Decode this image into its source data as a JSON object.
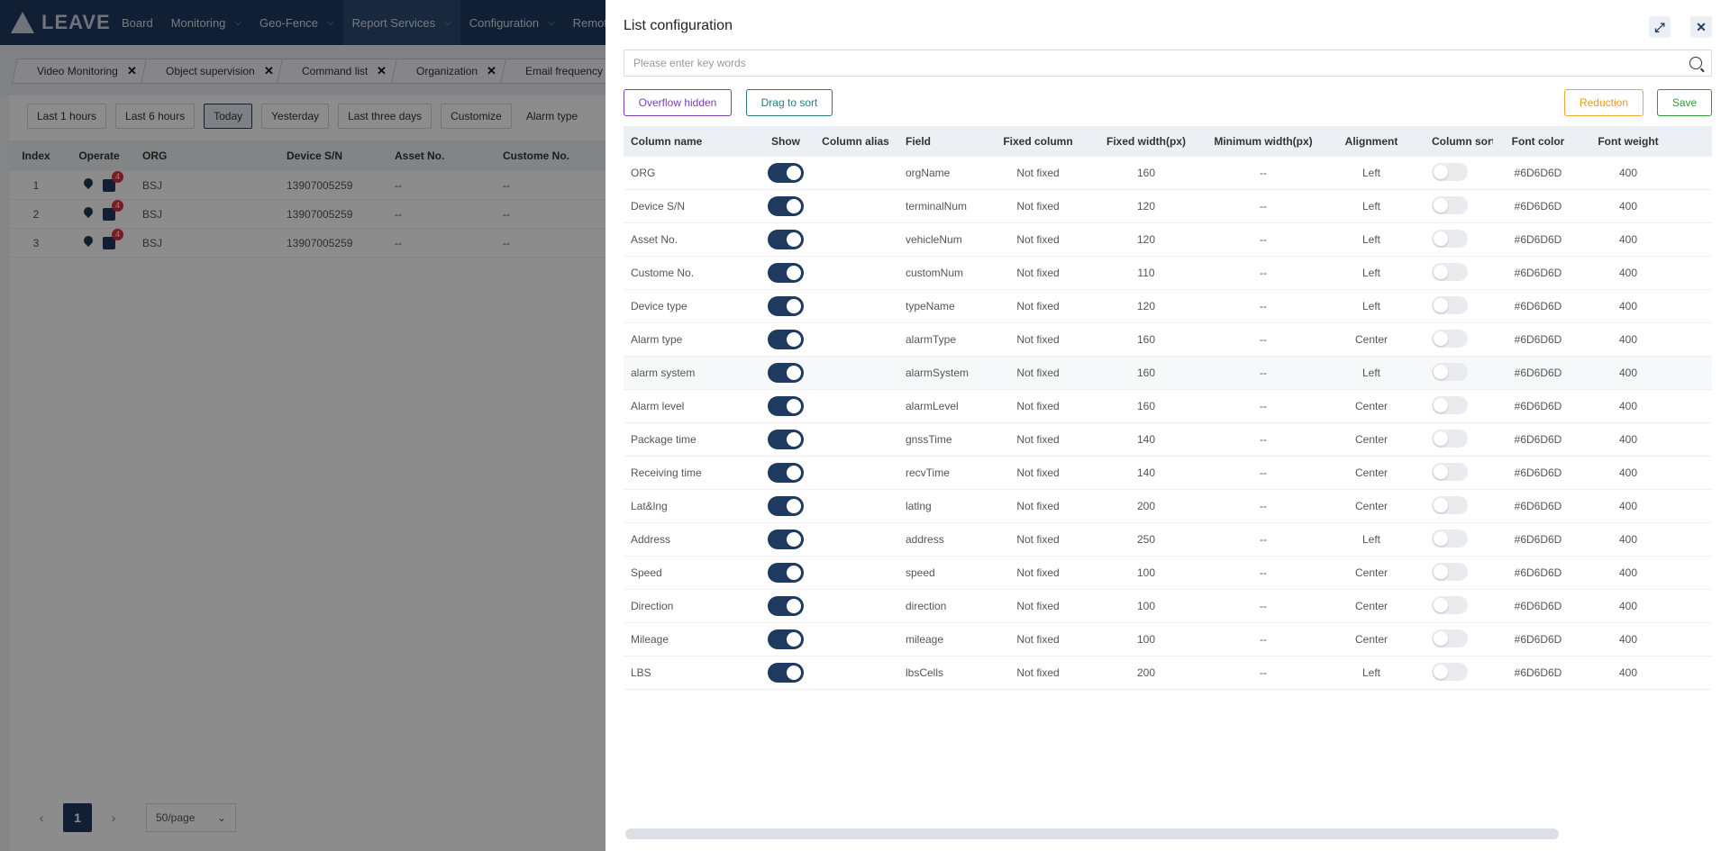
{
  "nav": {
    "logo": "LEAVE",
    "items": [
      {
        "label": "Board",
        "chevron": false
      },
      {
        "label": "Monitoring",
        "chevron": true
      },
      {
        "label": "Geo-Fence",
        "chevron": true
      },
      {
        "label": "Report Services",
        "chevron": true,
        "active": true
      },
      {
        "label": "Configuration",
        "chevron": true
      },
      {
        "label": "Remot",
        "chevron": false
      }
    ]
  },
  "tabs": [
    "Video Monitoring",
    "Object supervision",
    "Command list",
    "Organization",
    "Email frequency co"
  ],
  "filters": {
    "buttons": [
      "Last 1 hours",
      "Last 6 hours",
      "Today",
      "Yesterday",
      "Last three days",
      "Customize"
    ],
    "active": "Today",
    "alarm_type_label": "Alarm type"
  },
  "bg_table": {
    "headers": [
      "Index",
      "Operate",
      "ORG",
      "Device S/N",
      "Asset No.",
      "Custome No."
    ],
    "rows": [
      {
        "index": "1",
        "org": "BSJ",
        "sn": "13907005259",
        "asset": "--",
        "cust": "--",
        "badge": "4"
      },
      {
        "index": "2",
        "org": "BSJ",
        "sn": "13907005259",
        "asset": "--",
        "cust": "--",
        "badge": "4"
      },
      {
        "index": "3",
        "org": "BSJ",
        "sn": "13907005259",
        "asset": "--",
        "cust": "--",
        "badge": "4"
      }
    ]
  },
  "pager": {
    "prev": "‹",
    "current": "1",
    "next": "›",
    "page_size": "50/page"
  },
  "drawer": {
    "title": "List configuration",
    "search_placeholder": "Please enter key words",
    "buttons": {
      "overflow": "Overflow hidden",
      "drag": "Drag to sort",
      "reduction": "Reduction",
      "save": "Save"
    },
    "headers": {
      "name": "Column name",
      "show": "Show",
      "alias": "Column alias",
      "field": "Field",
      "fixed": "Fixed column",
      "fixed_width": "Fixed width(px)",
      "min_width": "Minimum width(px)",
      "align": "Alignment",
      "sort": "Column sort",
      "color": "Font color",
      "weight": "Font weight"
    },
    "rows": [
      {
        "name": "ORG",
        "field": "orgName",
        "fixed": "Not fixed",
        "fw": "160",
        "minw": "--",
        "align": "Left",
        "color": "#6D6D6D",
        "weight": "400"
      },
      {
        "name": "Device S/N",
        "field": "terminalNum",
        "fixed": "Not fixed",
        "fw": "120",
        "minw": "--",
        "align": "Left",
        "color": "#6D6D6D",
        "weight": "400"
      },
      {
        "name": "Asset No.",
        "field": "vehicleNum",
        "fixed": "Not fixed",
        "fw": "120",
        "minw": "--",
        "align": "Left",
        "color": "#6D6D6D",
        "weight": "400"
      },
      {
        "name": "Custome No.",
        "field": "customNum",
        "fixed": "Not fixed",
        "fw": "110",
        "minw": "--",
        "align": "Left",
        "color": "#6D6D6D",
        "weight": "400"
      },
      {
        "name": "Device type",
        "field": "typeName",
        "fixed": "Not fixed",
        "fw": "120",
        "minw": "--",
        "align": "Left",
        "color": "#6D6D6D",
        "weight": "400"
      },
      {
        "name": "Alarm type",
        "field": "alarmType",
        "fixed": "Not fixed",
        "fw": "160",
        "minw": "--",
        "align": "Center",
        "color": "#6D6D6D",
        "weight": "400"
      },
      {
        "name": "alarm system",
        "field": "alarmSystem",
        "fixed": "Not fixed",
        "fw": "160",
        "minw": "--",
        "align": "Left",
        "color": "#6D6D6D",
        "weight": "400"
      },
      {
        "name": "Alarm level",
        "field": "alarmLevel",
        "fixed": "Not fixed",
        "fw": "160",
        "minw": "--",
        "align": "Center",
        "color": "#6D6D6D",
        "weight": "400"
      },
      {
        "name": "Package time",
        "field": "gnssTime",
        "fixed": "Not fixed",
        "fw": "140",
        "minw": "--",
        "align": "Center",
        "color": "#6D6D6D",
        "weight": "400"
      },
      {
        "name": "Receiving time",
        "field": "recvTime",
        "fixed": "Not fixed",
        "fw": "140",
        "minw": "--",
        "align": "Center",
        "color": "#6D6D6D",
        "weight": "400"
      },
      {
        "name": "Lat&lng",
        "field": "latlng",
        "fixed": "Not fixed",
        "fw": "200",
        "minw": "--",
        "align": "Center",
        "color": "#6D6D6D",
        "weight": "400"
      },
      {
        "name": "Address",
        "field": "address",
        "fixed": "Not fixed",
        "fw": "250",
        "minw": "--",
        "align": "Left",
        "color": "#6D6D6D",
        "weight": "400"
      },
      {
        "name": "Speed",
        "field": "speed",
        "fixed": "Not fixed",
        "fw": "100",
        "minw": "--",
        "align": "Center",
        "color": "#6D6D6D",
        "weight": "400"
      },
      {
        "name": "Direction",
        "field": "direction",
        "fixed": "Not fixed",
        "fw": "100",
        "minw": "--",
        "align": "Center",
        "color": "#6D6D6D",
        "weight": "400"
      },
      {
        "name": "Mileage",
        "field": "mileage",
        "fixed": "Not fixed",
        "fw": "100",
        "minw": "--",
        "align": "Center",
        "color": "#6D6D6D",
        "weight": "400"
      },
      {
        "name": "LBS",
        "field": "lbsCells",
        "fixed": "Not fixed",
        "fw": "200",
        "minw": "--",
        "align": "Left",
        "color": "#6D6D6D",
        "weight": "400"
      }
    ]
  }
}
